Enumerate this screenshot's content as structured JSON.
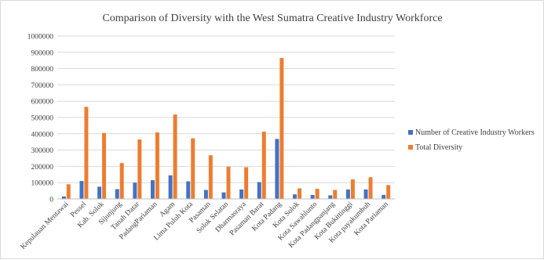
{
  "chart_data": {
    "type": "bar",
    "title": "Comparison of Diversity with the West Sumatra Creative Industry Workforce",
    "xlabel": "",
    "ylabel": "",
    "ylim": [
      0,
      1000000
    ],
    "yticks": [
      0,
      100000,
      200000,
      300000,
      400000,
      500000,
      600000,
      700000,
      800000,
      900000,
      1000000
    ],
    "ytick_labels": [
      "0",
      "100000",
      "200000",
      "300000",
      "400000",
      "500000",
      "600000",
      "700000",
      "800000",
      "900000",
      "1000000"
    ],
    "grid": true,
    "legend_position": "right",
    "categories": [
      "Kepulauan Mentawai",
      "Pessel",
      "Kab. Solok",
      "Sijunjung",
      "Tanah Datar",
      "PadangPariaman",
      "Agam",
      "Lima Puluh Kota",
      "Pasaman",
      "Solok Selatan",
      "Dharmasraya",
      "Pasaman Barat",
      "Kota Padang",
      "Kota Solok",
      "Kota Sawahlunto",
      "Kota Padangpanjang",
      "Kota Bukittinggi",
      "Kota payakumbuh",
      "Kota Pariaman"
    ],
    "series": [
      {
        "name": "Number of Creative Industry Workers",
        "color": "#4472c4",
        "values": [
          15000,
          110000,
          75000,
          60000,
          100000,
          115000,
          145000,
          108000,
          55000,
          40000,
          58000,
          103000,
          368000,
          28000,
          24000,
          22000,
          58000,
          58000,
          25000
        ]
      },
      {
        "name": "Total Diversity",
        "color": "#ed7d31",
        "values": [
          90000,
          565000,
          405000,
          220000,
          365000,
          408000,
          518000,
          372000,
          268000,
          198000,
          195000,
          413000,
          865000,
          65000,
          62000,
          55000,
          120000,
          133000,
          85000
        ]
      }
    ]
  }
}
